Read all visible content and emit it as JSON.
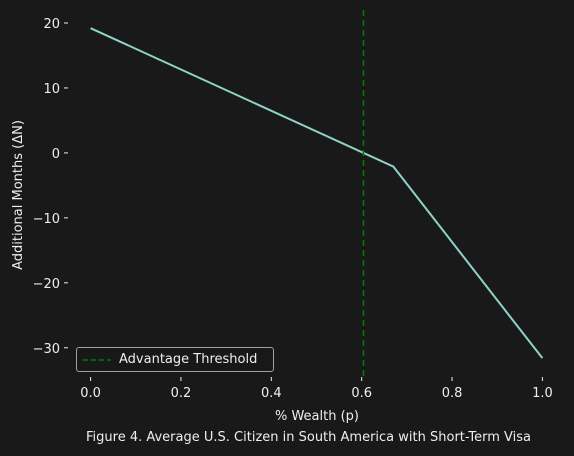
{
  "chart_data": {
    "type": "line",
    "xlabel": "% Wealth (p)",
    "ylabel": "Additional Months (ΔN)",
    "caption": "Figure 4. Average U.S. Citizen in South America with Short-Term Visa",
    "xlim": [
      -0.05,
      1.05
    ],
    "ylim": [
      -34.5,
      22
    ],
    "xticks": [
      0.0,
      0.2,
      0.4,
      0.6,
      0.8,
      1.0
    ],
    "xtick_labels": [
      "0.0",
      "0.2",
      "0.4",
      "0.6",
      "0.8",
      "1.0"
    ],
    "yticks": [
      20,
      10,
      0,
      -10,
      -20,
      -30
    ],
    "ytick_labels": [
      "20",
      "10",
      "0",
      "−10",
      "−20",
      "−30"
    ],
    "grid": false,
    "legend_position": "lower-left",
    "series": [
      {
        "x": [
          0.0,
          0.67,
          1.0
        ],
        "y": [
          19.2,
          -2.1,
          -31.6
        ],
        "color": "#8dd3c7"
      }
    ],
    "threshold": {
      "name": "Advantage Threshold",
      "x": 0.604,
      "color": "#008000",
      "style": "dashed"
    }
  }
}
